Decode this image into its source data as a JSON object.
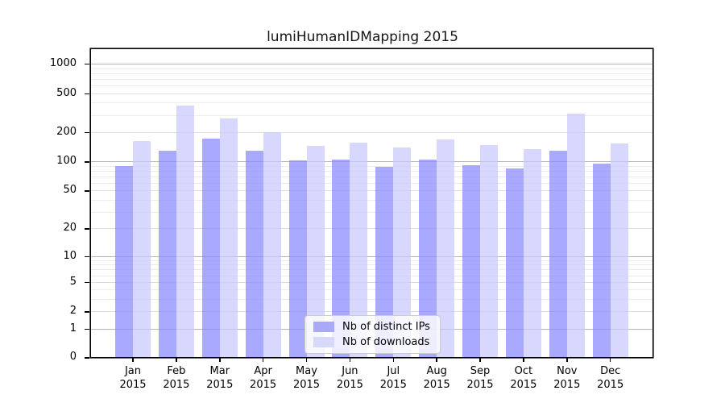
{
  "title": "lumiHumanIDMapping 2015",
  "chart_data": {
    "type": "bar",
    "title": "lumiHumanIDMapping 2015",
    "categories": [
      "Jan",
      "Feb",
      "Mar",
      "Apr",
      "May",
      "Jun",
      "Jul",
      "Aug",
      "Sep",
      "Oct",
      "Nov",
      "Dec"
    ],
    "year": "2015",
    "series": [
      {
        "name": "Nb of distinct IPs",
        "color": "#a9a9f8",
        "fill": "rgba(136,136,255,0.72)",
        "values": [
          90,
          128,
          172,
          128,
          102,
          105,
          88,
          105,
          91,
          85,
          128,
          95
        ]
      },
      {
        "name": "Nb of downloads",
        "color": "#d8d8fa",
        "fill": "rgba(201,201,255,0.72)",
        "values": [
          162,
          375,
          275,
          200,
          144,
          157,
          140,
          167,
          148,
          133,
          309,
          153
        ]
      }
    ],
    "y_axis": {
      "scale": "log10(value+1)",
      "ticks": [
        0,
        1,
        2,
        5,
        10,
        20,
        50,
        100,
        200,
        500,
        1000
      ],
      "top_value": 1400
    },
    "x_axis": {
      "label_lines": 2
    },
    "grid": {
      "major_color": "#b5b5b5",
      "mid_color": "#dedede",
      "minor_color": "#ececec",
      "major_at": [
        1,
        10,
        100,
        1000
      ]
    },
    "legend_position": "lower center-right"
  }
}
